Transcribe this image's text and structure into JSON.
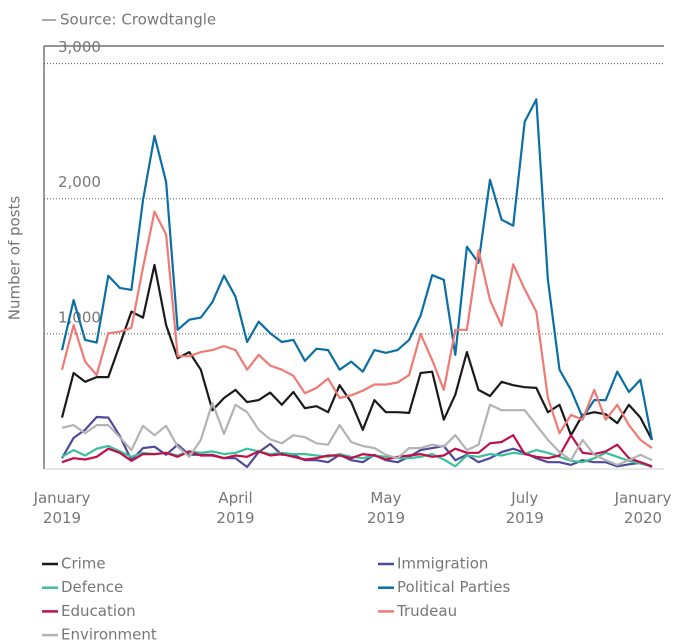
{
  "chart_data": {
    "type": "line",
    "source": "Source: Crowdtangle",
    "y_label": "Number of posts",
    "categories": [
      "January 2019",
      null,
      null,
      null,
      null,
      null,
      null,
      null,
      null,
      null,
      null,
      null,
      null,
      null,
      null,
      "April 2019",
      null,
      null,
      null,
      null,
      null,
      null,
      null,
      null,
      null,
      null,
      null,
      null,
      "May 2019",
      null,
      null,
      null,
      null,
      null,
      null,
      null,
      null,
      null,
      null,
      null,
      "July 2019",
      null,
      null,
      null,
      null,
      null,
      null,
      null,
      null,
      null,
      null,
      "January 2020"
    ],
    "ylim": [
      0,
      3130
    ],
    "yticks": [
      {
        "value": 1000,
        "label": "1,000"
      },
      {
        "value": 2000,
        "label": "2,000"
      },
      {
        "value": 3000,
        "label": "3,000"
      }
    ],
    "grid": true,
    "legend": "bottom",
    "series": [
      {
        "name": "Crime",
        "color": "#1a1a1a",
        "values": [
          380,
          710,
          645,
          680,
          680,
          920,
          1165,
          1120,
          1510,
          1065,
          820,
          865,
          735,
          435,
          525,
          585,
          495,
          510,
          565,
          475,
          570,
          450,
          465,
          420,
          620,
          495,
          290,
          510,
          420,
          420,
          415,
          710,
          720,
          365,
          550,
          865,
          585,
          540,
          645,
          620,
          605,
          600,
          420,
          475,
          250,
          400,
          420,
          405,
          340,
          475,
          380,
          215
        ]
      },
      {
        "name": "Immigration",
        "color": "#4f4a9a",
        "values": [
          80,
          230,
          290,
          385,
          380,
          245,
          65,
          155,
          165,
          105,
          180,
          105,
          105,
          105,
          80,
          80,
          15,
          125,
          185,
          105,
          105,
          65,
          65,
          50,
          105,
          65,
          50,
          105,
          65,
          50,
          90,
          140,
          155,
          170,
          65,
          105,
          50,
          80,
          125,
          150,
          120,
          80,
          50,
          50,
          30,
          65,
          50,
          50,
          20,
          35,
          45,
          15
        ]
      },
      {
        "name": "Defence",
        "color": "#3cbf9c",
        "values": [
          90,
          140,
          100,
          150,
          170,
          130,
          90,
          120,
          110,
          120,
          100,
          130,
          120,
          130,
          110,
          120,
          150,
          130,
          110,
          120,
          110,
          110,
          100,
          90,
          110,
          90,
          80,
          100,
          90,
          80,
          80,
          90,
          110,
          70,
          20,
          100,
          90,
          110,
          100,
          120,
          110,
          140,
          120,
          90,
          60,
          50,
          80,
          120,
          90,
          60,
          40,
          20
        ]
      },
      {
        "name": "Political Parties",
        "color": "#0b6fa4",
        "values": [
          880,
          1250,
          955,
          935,
          1430,
          1340,
          1325,
          1990,
          2465,
          2125,
          1030,
          1105,
          1120,
          1235,
          1430,
          1275,
          940,
          1090,
          1005,
          940,
          955,
          800,
          890,
          880,
          735,
          795,
          720,
          880,
          860,
          880,
          955,
          1135,
          1435,
          1400,
          845,
          1645,
          1525,
          2140,
          1845,
          1800,
          2570,
          2735,
          1400,
          735,
          585,
          380,
          510,
          510,
          720,
          570,
          660,
          215
        ]
      },
      {
        "name": "Education",
        "color": "#c0104a",
        "values": [
          50,
          80,
          70,
          90,
          150,
          120,
          60,
          110,
          110,
          120,
          90,
          130,
          100,
          100,
          80,
          100,
          90,
          130,
          100,
          110,
          90,
          70,
          80,
          100,
          100,
          80,
          110,
          100,
          70,
          90,
          100,
          110,
          90,
          100,
          150,
          120,
          120,
          190,
          200,
          250,
          110,
          90,
          80,
          100,
          250,
          120,
          110,
          130,
          180,
          80,
          50,
          20
        ]
      },
      {
        "name": "Trudeau",
        "color": "#ef7a74",
        "values": [
          735,
          1065,
          795,
          695,
          1005,
          1015,
          1045,
          1490,
          1905,
          1735,
          835,
          835,
          865,
          880,
          910,
          880,
          735,
          845,
          765,
          735,
          690,
          560,
          600,
          670,
          525,
          545,
          580,
          625,
          625,
          640,
          695,
          1000,
          805,
          585,
          1030,
          1030,
          1620,
          1250,
          1060,
          1515,
          1330,
          1165,
          525,
          265,
          400,
          365,
          585,
          365,
          475,
          325,
          215,
          155
        ]
      },
      {
        "name": "Environment",
        "color": "#b3b3b3",
        "values": [
          305,
          325,
          265,
          325,
          325,
          235,
          140,
          320,
          250,
          320,
          165,
          90,
          215,
          490,
          260,
          475,
          420,
          290,
          220,
          190,
          250,
          235,
          190,
          180,
          325,
          200,
          170,
          155,
          105,
          80,
          155,
          155,
          180,
          165,
          250,
          140,
          180,
          475,
          435,
          435,
          435,
          325,
          215,
          125,
          65,
          215,
          105,
          65,
          30,
          65,
          105,
          65
        ]
      }
    ]
  }
}
